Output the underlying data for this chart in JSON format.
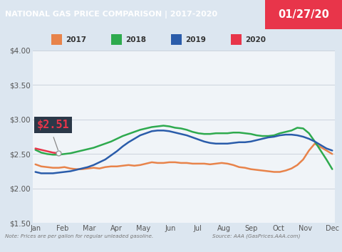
{
  "title_left": "NATIONAL GAS PRICE COMPARISON | 2017-2020",
  "title_right": "01/27/20",
  "title_bg": "#1b3f7a",
  "title_right_bg": "#e8354a",
  "title_color": "#ffffff",
  "note_text": "Note: Prices are per gallon for regular unleaded gasoline.",
  "source_text": "Source: AAA (GasPrices.AAA.com)",
  "bg_color": "#dce6f0",
  "plot_bg": "#f0f4f8",
  "annotation_price": "$2.51",
  "ylim": [
    1.5,
    4.0
  ],
  "yticks": [
    1.5,
    2.0,
    2.5,
    3.0,
    3.5,
    4.0
  ],
  "series": {
    "2017": {
      "color": "#e8834a",
      "label": "2017",
      "x": [
        0,
        1,
        2,
        3,
        4,
        5,
        6,
        7,
        8,
        9,
        10,
        11,
        12,
        13,
        14,
        15,
        16,
        17,
        18,
        19,
        20,
        21,
        22,
        23,
        24,
        25,
        26,
        27,
        28,
        29,
        30,
        31,
        32,
        33,
        34,
        35,
        36,
        37,
        38,
        39,
        40,
        41,
        42,
        43,
        44,
        45,
        46,
        47,
        48,
        49,
        50,
        51
      ],
      "y": [
        2.35,
        2.32,
        2.31,
        2.3,
        2.3,
        2.31,
        2.29,
        2.28,
        2.28,
        2.29,
        2.3,
        2.29,
        2.31,
        2.32,
        2.32,
        2.33,
        2.34,
        2.33,
        2.34,
        2.36,
        2.38,
        2.37,
        2.37,
        2.38,
        2.38,
        2.37,
        2.37,
        2.36,
        2.36,
        2.36,
        2.35,
        2.36,
        2.37,
        2.36,
        2.34,
        2.31,
        2.3,
        2.28,
        2.27,
        2.26,
        2.25,
        2.24,
        2.24,
        2.26,
        2.29,
        2.34,
        2.42,
        2.55,
        2.65,
        2.6,
        2.55,
        2.5
      ]
    },
    "2018": {
      "color": "#2eaa4e",
      "label": "2018",
      "x": [
        0,
        1,
        2,
        3,
        4,
        5,
        6,
        7,
        8,
        9,
        10,
        11,
        12,
        13,
        14,
        15,
        16,
        17,
        18,
        19,
        20,
        21,
        22,
        23,
        24,
        25,
        26,
        27,
        28,
        29,
        30,
        31,
        32,
        33,
        34,
        35,
        36,
        37,
        38,
        39,
        40,
        41,
        42,
        43,
        44,
        45,
        46,
        47,
        48,
        49,
        50,
        51
      ],
      "y": [
        2.56,
        2.52,
        2.5,
        2.49,
        2.49,
        2.5,
        2.51,
        2.53,
        2.55,
        2.57,
        2.59,
        2.62,
        2.65,
        2.68,
        2.72,
        2.76,
        2.79,
        2.82,
        2.85,
        2.87,
        2.89,
        2.9,
        2.91,
        2.9,
        2.88,
        2.87,
        2.85,
        2.82,
        2.8,
        2.79,
        2.79,
        2.8,
        2.8,
        2.8,
        2.81,
        2.81,
        2.8,
        2.79,
        2.77,
        2.76,
        2.76,
        2.77,
        2.8,
        2.82,
        2.84,
        2.88,
        2.87,
        2.8,
        2.68,
        2.55,
        2.42,
        2.28
      ]
    },
    "2019": {
      "color": "#2a5caa",
      "label": "2019",
      "x": [
        0,
        1,
        2,
        3,
        4,
        5,
        6,
        7,
        8,
        9,
        10,
        11,
        12,
        13,
        14,
        15,
        16,
        17,
        18,
        19,
        20,
        21,
        22,
        23,
        24,
        25,
        26,
        27,
        28,
        29,
        30,
        31,
        32,
        33,
        34,
        35,
        36,
        37,
        38,
        39,
        40,
        41,
        42,
        43,
        44,
        45,
        46,
        47,
        48,
        49,
        50,
        51
      ],
      "y": [
        2.24,
        2.22,
        2.22,
        2.22,
        2.23,
        2.24,
        2.25,
        2.27,
        2.29,
        2.31,
        2.34,
        2.38,
        2.42,
        2.48,
        2.54,
        2.61,
        2.67,
        2.72,
        2.77,
        2.8,
        2.83,
        2.84,
        2.84,
        2.83,
        2.81,
        2.79,
        2.77,
        2.74,
        2.71,
        2.68,
        2.66,
        2.65,
        2.65,
        2.65,
        2.66,
        2.67,
        2.67,
        2.68,
        2.7,
        2.72,
        2.74,
        2.75,
        2.77,
        2.78,
        2.78,
        2.77,
        2.75,
        2.72,
        2.68,
        2.63,
        2.58,
        2.55
      ]
    },
    "2020": {
      "color": "#e8354a",
      "label": "2020",
      "x": [
        0,
        1,
        2,
        3,
        4
      ],
      "y": [
        2.58,
        2.56,
        2.54,
        2.52,
        2.51
      ]
    }
  }
}
